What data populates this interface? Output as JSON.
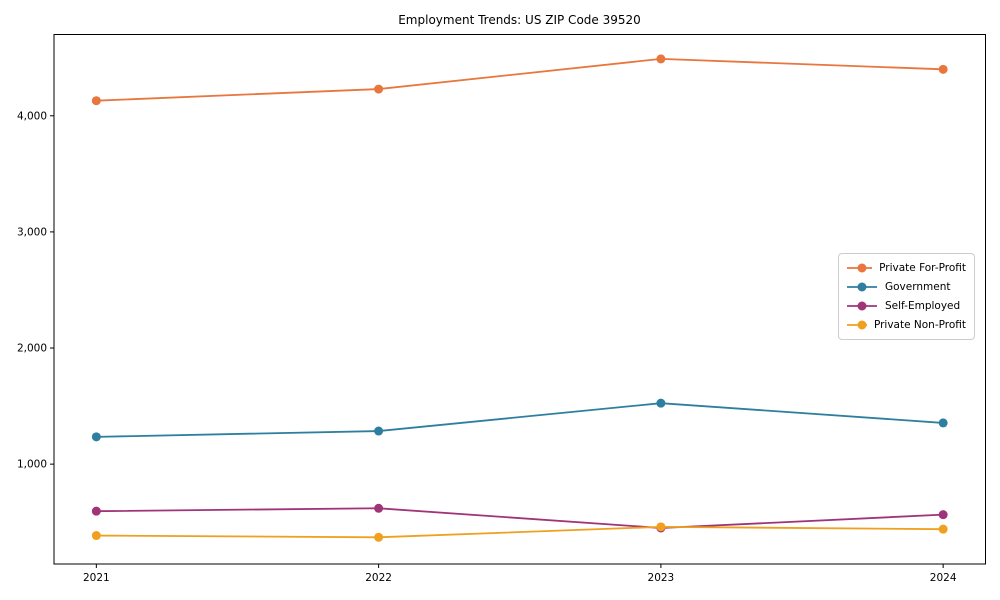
{
  "figure": {
    "title": "Employment Trends: US ZIP Code 39520"
  },
  "chart_data": {
    "type": "line",
    "title": "Employment Trends: US ZIP Code 39520",
    "xlabel": "",
    "ylabel": "",
    "x": [
      2021,
      2022,
      2023,
      2024
    ],
    "x_tick_labels": [
      "2021",
      "2022",
      "2023",
      "2024"
    ],
    "y_tick_values": [
      1000,
      2000,
      3000,
      4000
    ],
    "y_tick_labels": [
      "1,000",
      "2,000",
      "3,000",
      "4,000"
    ],
    "xlim": [
      2020.85,
      2024.15
    ],
    "ylim": [
      140,
      4700
    ],
    "grid": false,
    "legend_position": "center right",
    "series": [
      {
        "name": "Private For-Profit",
        "color": "#e8763d",
        "values": [
          4130,
          4230,
          4490,
          4400
        ]
      },
      {
        "name": "Government",
        "color": "#2e7f9f",
        "values": [
          1235,
          1285,
          1525,
          1355
        ]
      },
      {
        "name": "Self-Employed",
        "color": "#a03478",
        "values": [
          595,
          620,
          450,
          565
        ]
      },
      {
        "name": "Private Non-Profit",
        "color": "#f0a01e",
        "values": [
          385,
          370,
          460,
          440
        ]
      }
    ],
    "axis_color": "#000000",
    "background": "#ffffff"
  }
}
